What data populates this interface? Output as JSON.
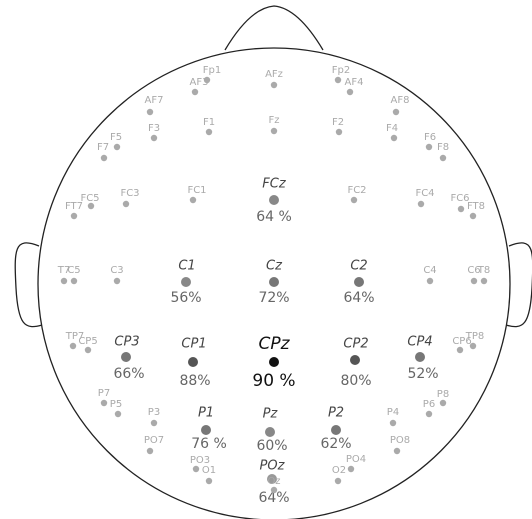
{
  "electrodes": [
    {
      "label": "Fp1"
    },
    {
      "label": "AFz"
    },
    {
      "label": "Fp2"
    },
    {
      "label": "AF3"
    },
    {
      "label": "AF4"
    },
    {
      "label": "AF7"
    },
    {
      "label": "AF8"
    },
    {
      "label": "F5"
    },
    {
      "label": "F7"
    },
    {
      "label": "F3"
    },
    {
      "label": "F1"
    },
    {
      "label": "Fz"
    },
    {
      "label": "F2"
    },
    {
      "label": "F4"
    },
    {
      "label": "F6"
    },
    {
      "label": "F8"
    },
    {
      "label": "FT7"
    },
    {
      "label": "FC5"
    },
    {
      "label": "FC3"
    },
    {
      "label": "FC1"
    },
    {
      "label": "FCz",
      "value": "64 %",
      "color": "#888888"
    },
    {
      "label": "FC2"
    },
    {
      "label": "FC4"
    },
    {
      "label": "FC6"
    },
    {
      "label": "FT8"
    },
    {
      "label": "T7"
    },
    {
      "label": "C5"
    },
    {
      "label": "C3"
    },
    {
      "label": "C1",
      "value": "56%",
      "color": "#888888"
    },
    {
      "label": "Cz",
      "value": "72%",
      "color": "#777777"
    },
    {
      "label": "C2",
      "value": "64%",
      "color": "#777777"
    },
    {
      "label": "C4"
    },
    {
      "label": "C6"
    },
    {
      "label": "T8"
    },
    {
      "label": "TP7"
    },
    {
      "label": "CP5"
    },
    {
      "label": "CP3",
      "value": "66%",
      "color": "#777777"
    },
    {
      "label": "CP1",
      "value": "88%",
      "color": "#555555"
    },
    {
      "label": "CPz",
      "value": "90 %",
      "color": "#111111"
    },
    {
      "label": "CP2",
      "value": "80%",
      "color": "#555555"
    },
    {
      "label": "CP4",
      "value": "52%",
      "color": "#777777"
    },
    {
      "label": "CP6"
    },
    {
      "label": "TP8"
    },
    {
      "label": "P7"
    },
    {
      "label": "P5"
    },
    {
      "label": "P3"
    },
    {
      "label": "P1",
      "value": "76 %",
      "color": "#777777"
    },
    {
      "label": "Pz",
      "value": "60%",
      "color": "#888888"
    },
    {
      "label": "P2",
      "value": "62%",
      "color": "#777777"
    },
    {
      "label": "P4"
    },
    {
      "label": "P6"
    },
    {
      "label": "P8"
    },
    {
      "label": "PO7"
    },
    {
      "label": "PO3"
    },
    {
      "label": "POz",
      "value": "64%",
      "color": "#999999"
    },
    {
      "label": "Oz"
    },
    {
      "label": "PO4"
    },
    {
      "label": "PO8"
    },
    {
      "label": "O1"
    },
    {
      "label": "O2"
    }
  ]
}
